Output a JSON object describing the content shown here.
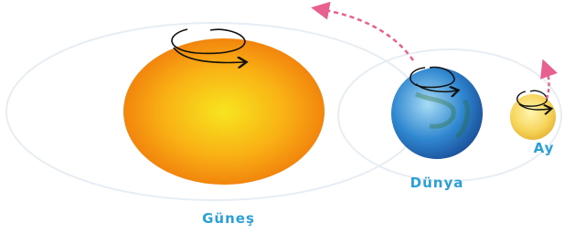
{
  "labels": {
    "sun": "Güneş",
    "earth": "Dünya",
    "moon": "Ay"
  }
}
